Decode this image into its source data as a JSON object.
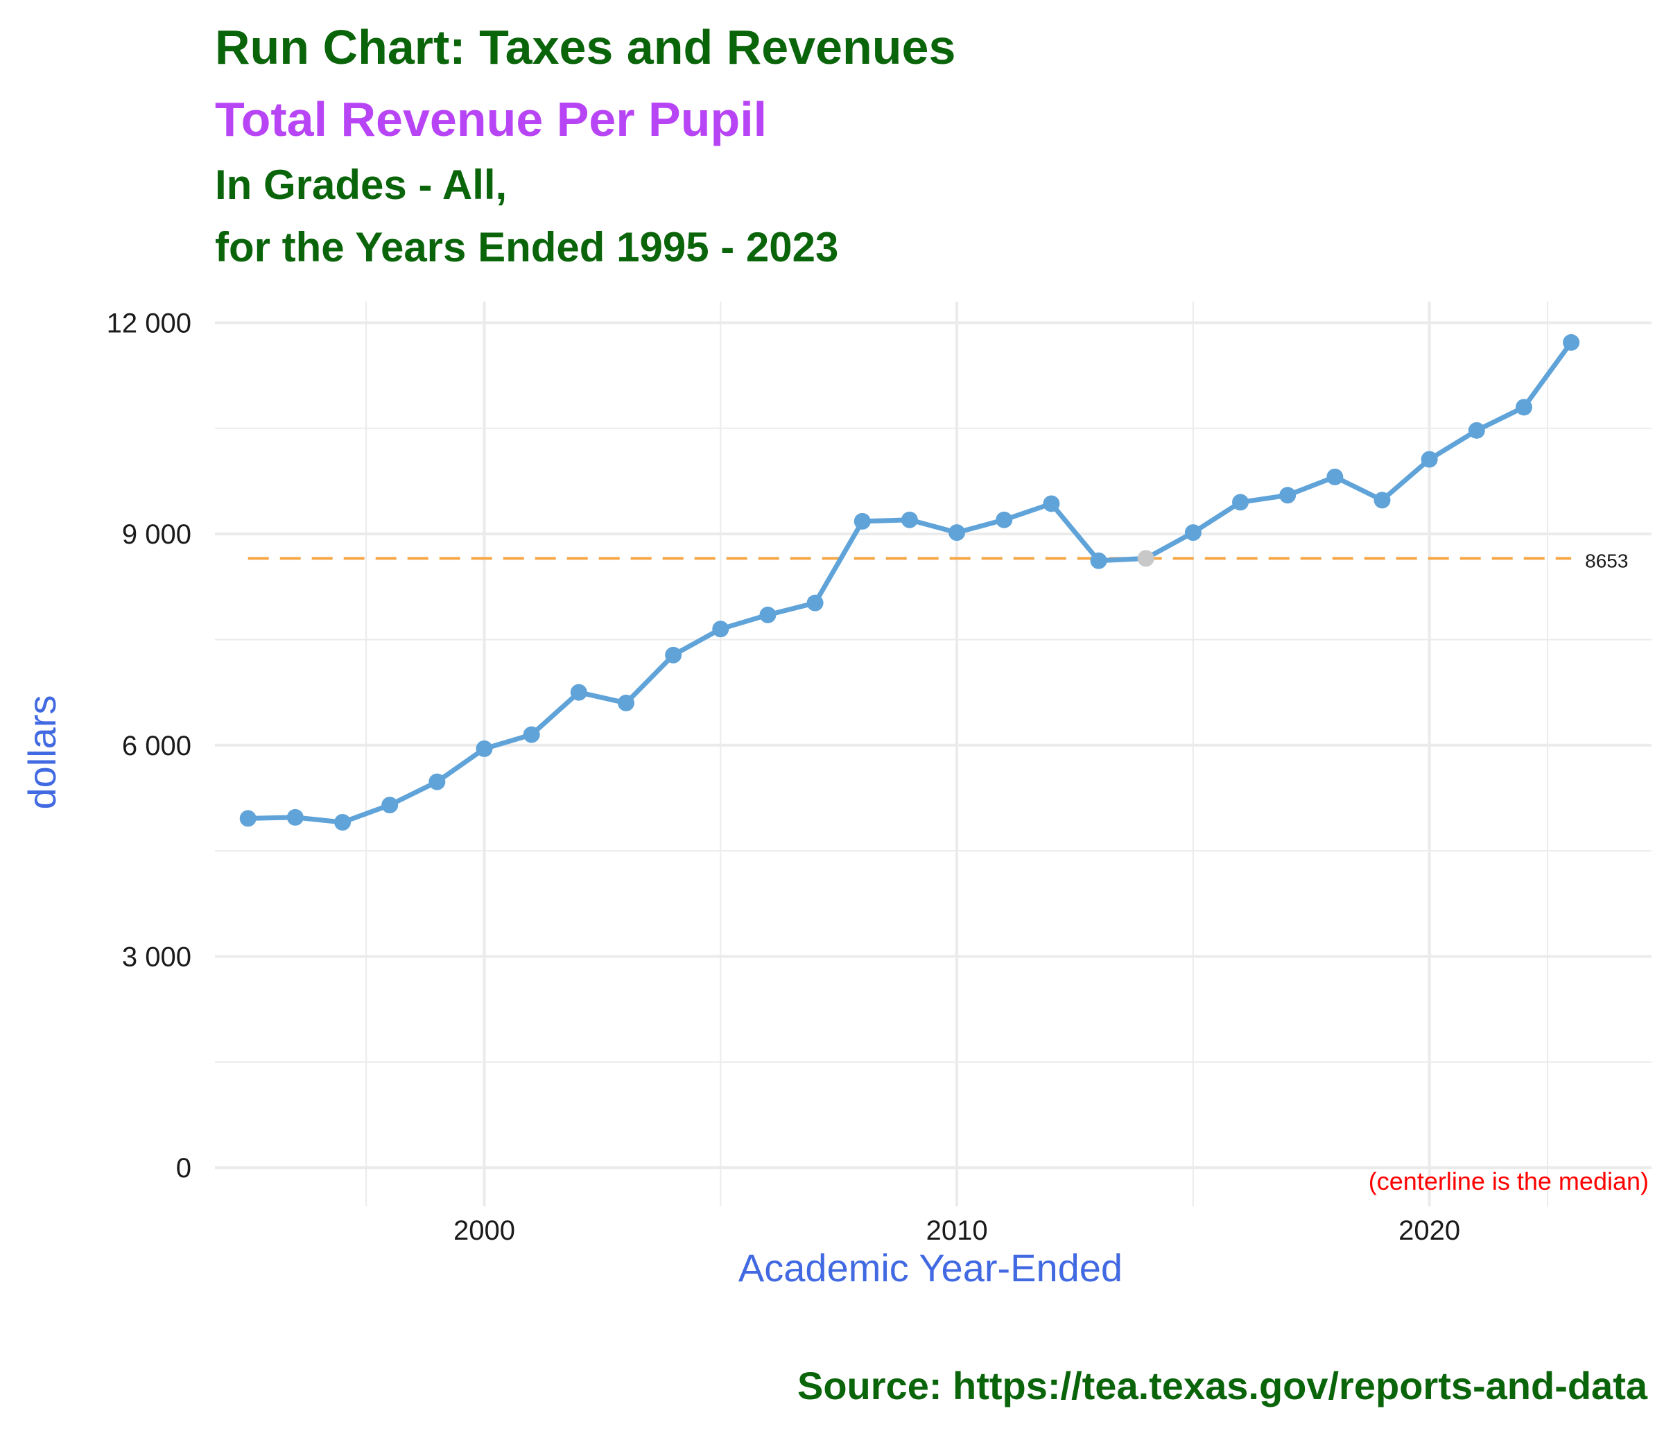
{
  "titles": {
    "title": "Run Chart: Taxes and Revenues",
    "subtitle": "Total Revenue Per Pupil",
    "line3": "In Grades - All,",
    "line4": "for the Years Ended 1995 - 2023"
  },
  "source": "Source:  https://tea.texas.gov/reports-and-data",
  "colors": {
    "title": "#0a640a",
    "subtitle": "#b845f5",
    "axis_label": "#4169e1",
    "line": "#5fa3d9",
    "highlight_point": "#c8c8c8",
    "median_line": "#f5a747",
    "note": "#ff0000",
    "grid": "#ebebeb"
  },
  "chart_data": {
    "type": "line",
    "xlabel": "Academic Year-Ended",
    "ylabel": "dollars",
    "xlim": [
      1994.3,
      2024.7
    ],
    "ylim": [
      -550,
      12300
    ],
    "x_ticks": [
      2000,
      2010,
      2020
    ],
    "x_tick_labels": [
      "2000",
      "2010",
      "2020"
    ],
    "y_ticks": [
      0,
      3000,
      6000,
      9000,
      12000
    ],
    "y_tick_labels": [
      "0",
      "3 000",
      "6 000",
      "9 000",
      "12 000"
    ],
    "grid": true,
    "series": [
      {
        "x": [
          1995,
          1996,
          1997,
          1998,
          1999,
          2000,
          2001,
          2002,
          2003,
          2004,
          2005,
          2006,
          2007,
          2008,
          2009,
          2010,
          2011,
          2012,
          2013,
          2014,
          2015,
          2016,
          2017,
          2018,
          2019,
          2020,
          2021,
          2022,
          2023
        ],
        "values": [
          4960,
          4975,
          4905,
          5150,
          5480,
          5950,
          6150,
          6750,
          6600,
          7280,
          7650,
          7850,
          8020,
          9180,
          9200,
          9020,
          9200,
          9430,
          8620,
          8653,
          9020,
          9450,
          9550,
          9810,
          9480,
          10060,
          10470,
          10800,
          11720
        ]
      }
    ],
    "highlight_point": {
      "x": 2014,
      "y": 8653
    },
    "centerline": {
      "value": 8653,
      "label": "8653"
    },
    "note": "(centerline is the median)"
  }
}
